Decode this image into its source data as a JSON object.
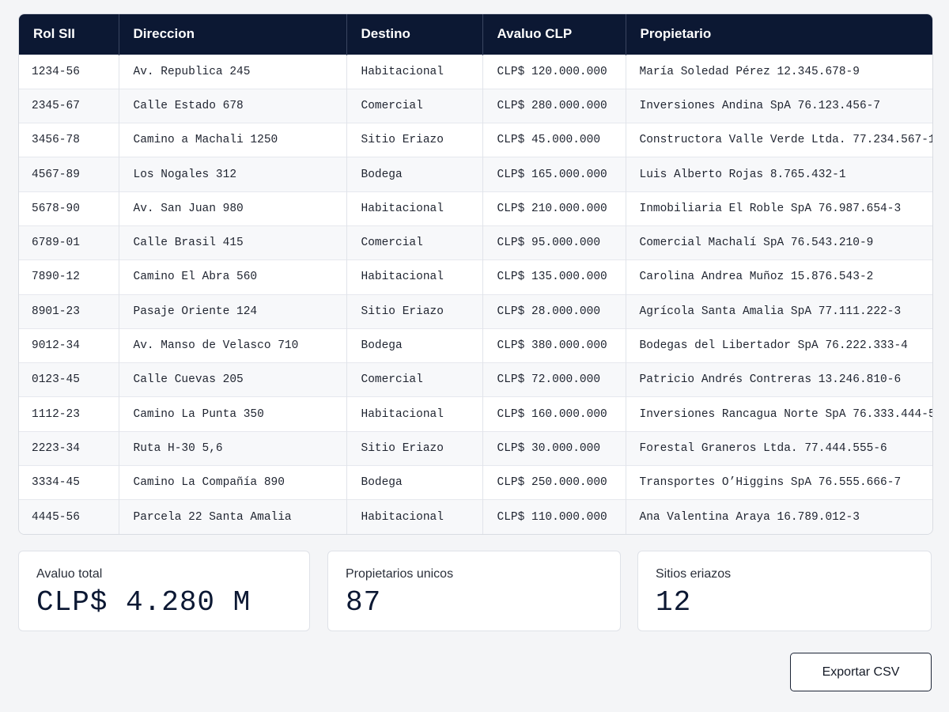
{
  "table": {
    "columns": [
      "Rol SII",
      "Direccion",
      "Destino",
      "Avaluo CLP",
      "Propietario"
    ],
    "rows": [
      [
        "1234-56",
        "Av. Republica 245",
        "Habitacional",
        "CLP$ 120.000.000",
        "María Soledad Pérez 12.345.678-9"
      ],
      [
        "2345-67",
        "Calle Estado 678",
        "Comercial",
        "CLP$ 280.000.000",
        "Inversiones Andina SpA 76.123.456-7"
      ],
      [
        "3456-78",
        "Camino a Machali 1250",
        "Sitio Eriazo",
        "CLP$ 45.000.000",
        "Constructora Valle Verde Ltda. 77.234.567-1"
      ],
      [
        "4567-89",
        "Los Nogales 312",
        "Bodega",
        "CLP$ 165.000.000",
        "Luis Alberto Rojas 8.765.432-1"
      ],
      [
        "5678-90",
        "Av. San Juan 980",
        "Habitacional",
        "CLP$ 210.000.000",
        "Inmobiliaria El Roble SpA 76.987.654-3"
      ],
      [
        "6789-01",
        "Calle Brasil 415",
        "Comercial",
        "CLP$ 95.000.000",
        "Comercial Machalí SpA 76.543.210-9"
      ],
      [
        "7890-12",
        "Camino El Abra 560",
        "Habitacional",
        "CLP$ 135.000.000",
        "Carolina Andrea Muñoz 15.876.543-2"
      ],
      [
        "8901-23",
        "Pasaje Oriente 124",
        "Sitio Eriazo",
        "CLP$ 28.000.000",
        "Agrícola Santa Amalia SpA 77.111.222-3"
      ],
      [
        "9012-34",
        "Av. Manso de Velasco 710",
        "Bodega",
        "CLP$ 380.000.000",
        "Bodegas del Libertador SpA 76.222.333-4"
      ],
      [
        "0123-45",
        "Calle Cuevas 205",
        "Comercial",
        "CLP$ 72.000.000",
        "Patricio Andrés Contreras 13.246.810-6"
      ],
      [
        "1112-23",
        "Camino La Punta 350",
        "Habitacional",
        "CLP$ 160.000.000",
        "Inversiones Rancagua Norte SpA 76.333.444-5"
      ],
      [
        "2223-34",
        "Ruta H-30 5,6",
        "Sitio Eriazo",
        "CLP$ 30.000.000",
        "Forestal Graneros Ltda. 77.444.555-6"
      ],
      [
        "3334-45",
        "Camino La Compañía 890",
        "Bodega",
        "CLP$ 250.000.000",
        "Transportes O’Higgins SpA 76.555.666-7"
      ],
      [
        "4445-56",
        "Parcela 22 Santa Amalia",
        "Habitacional",
        "CLP$ 110.000.000",
        "Ana Valentina Araya 16.789.012-3"
      ]
    ]
  },
  "summary": {
    "cards": [
      {
        "label": "Avaluo total",
        "value": "CLP$ 4.280 M"
      },
      {
        "label": "Propietarios unicos",
        "value": "87"
      },
      {
        "label": "Sitios eriazos",
        "value": "12"
      }
    ]
  },
  "actions": {
    "export_label": "Exportar CSV"
  },
  "colors": {
    "header_bg": "#0c1833",
    "page_bg": "#f4f5f7"
  }
}
